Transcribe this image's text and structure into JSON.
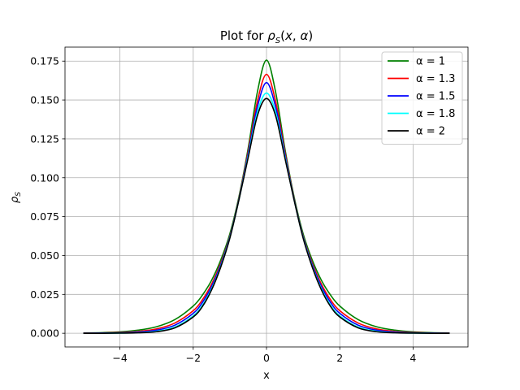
{
  "chart_data": {
    "type": "line",
    "title": "Plot for ρ_S(x, α)",
    "xlabel": "x",
    "ylabel": "ρ_S",
    "xlim": [
      -5.5,
      5.5
    ],
    "ylim": [
      -0.0088,
      0.184
    ],
    "xticks": [
      -4,
      -2,
      0,
      2,
      4
    ],
    "xtick_labels": [
      "−4",
      "−2",
      "0",
      "2",
      "4"
    ],
    "yticks": [
      0.0,
      0.025,
      0.05,
      0.075,
      0.1,
      0.125,
      0.15,
      0.175
    ],
    "ytick_labels": [
      "0.000",
      "0.025",
      "0.050",
      "0.075",
      "0.100",
      "0.125",
      "0.150",
      "0.175"
    ],
    "grid": true,
    "legend_position": "top-right",
    "x": [
      -5,
      -4.5,
      -4,
      -3.5,
      -3,
      -2.5,
      -2,
      -1.75,
      -1.5,
      -1.25,
      -1,
      -0.75,
      -0.5,
      -0.25,
      0,
      0.25,
      0.5,
      0.75,
      1,
      1.25,
      1.5,
      1.75,
      2,
      2.5,
      3,
      3.5,
      4,
      4.5,
      5
    ],
    "series": [
      {
        "name": "α = 1",
        "color": "#008000",
        "values": [
          0.0002,
          0.0004,
          0.0009,
          0.002,
          0.0042,
          0.0088,
          0.0175,
          0.0245,
          0.034,
          0.047,
          0.064,
          0.088,
          0.119,
          0.155,
          0.1756,
          0.155,
          0.119,
          0.088,
          0.064,
          0.047,
          0.034,
          0.0245,
          0.0175,
          0.0088,
          0.0042,
          0.002,
          0.0009,
          0.0004,
          0.0002
        ]
      },
      {
        "name": "α = 1.3",
        "color": "#ff0000",
        "values": [
          0.0001,
          0.0002,
          0.0005,
          0.0012,
          0.0028,
          0.0066,
          0.0145,
          0.0215,
          0.0315,
          0.045,
          0.0625,
          0.087,
          0.117,
          0.149,
          0.1665,
          0.149,
          0.117,
          0.087,
          0.0625,
          0.045,
          0.0315,
          0.0215,
          0.0145,
          0.0066,
          0.0028,
          0.0012,
          0.0005,
          0.0002,
          0.0001
        ]
      },
      {
        "name": "α = 1.5",
        "color": "#0000ff",
        "values": [
          0.0,
          0.0001,
          0.0003,
          0.0008,
          0.002,
          0.0052,
          0.0128,
          0.0198,
          0.03,
          0.044,
          0.062,
          0.0865,
          0.1155,
          0.1455,
          0.1612,
          0.1455,
          0.1155,
          0.0865,
          0.062,
          0.044,
          0.03,
          0.0198,
          0.0128,
          0.0052,
          0.002,
          0.0008,
          0.0003,
          0.0001,
          0.0
        ]
      },
      {
        "name": "α = 1.8",
        "color": "#00ffff",
        "values": [
          0.0,
          0.0,
          0.0001,
          0.0004,
          0.0013,
          0.004,
          0.0112,
          0.018,
          0.0285,
          0.043,
          0.0615,
          0.0862,
          0.114,
          0.142,
          0.1545,
          0.142,
          0.114,
          0.0862,
          0.0615,
          0.043,
          0.0285,
          0.018,
          0.0112,
          0.004,
          0.0013,
          0.0004,
          0.0001,
          0.0,
          0.0
        ]
      },
      {
        "name": "α = 2",
        "color": "#000000",
        "values": [
          0.0,
          0.0,
          0.0001,
          0.0003,
          0.001,
          0.0035,
          0.0105,
          0.0172,
          0.0278,
          0.0425,
          0.0612,
          0.086,
          0.113,
          0.1398,
          0.151,
          0.1398,
          0.113,
          0.086,
          0.0612,
          0.0425,
          0.0278,
          0.0172,
          0.0105,
          0.0035,
          0.001,
          0.0003,
          0.0001,
          0.0,
          0.0
        ]
      }
    ]
  }
}
